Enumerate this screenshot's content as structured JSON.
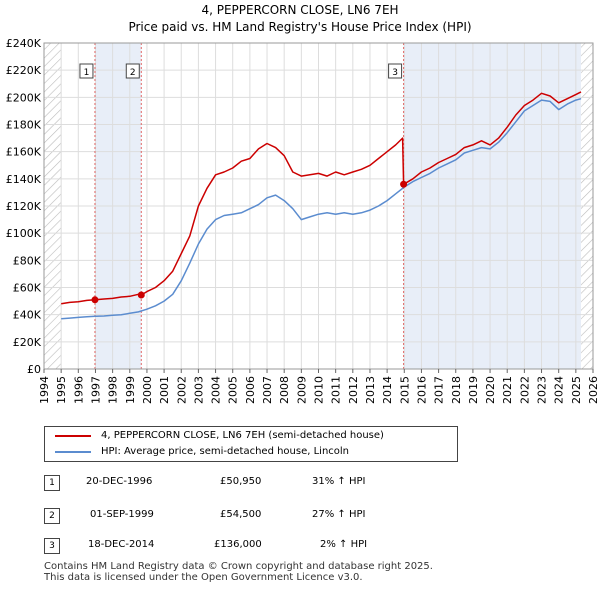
{
  "chart_data": {
    "type": "line",
    "title": "4, PEPPERCORN CLOSE, LN6 7EH",
    "subtitle": "Price paid vs. HM Land Registry's House Price Index (HPI)",
    "xlabel": "",
    "ylabel": "",
    "xlim": [
      1994.0,
      2026.0
    ],
    "ylim": [
      0,
      240000
    ],
    "x_ticks": [
      "1994",
      "1995",
      "1996",
      "1997",
      "1998",
      "1999",
      "2000",
      "2001",
      "2002",
      "2003",
      "2004",
      "2005",
      "2006",
      "2007",
      "2008",
      "2009",
      "2010",
      "2011",
      "2012",
      "2013",
      "2014",
      "2015",
      "2016",
      "2017",
      "2018",
      "2019",
      "2020",
      "2021",
      "2022",
      "2023",
      "2024",
      "2025",
      "2026"
    ],
    "y_ticks": [
      "£0",
      "£20K",
      "£40K",
      "£60K",
      "£80K",
      "£100K",
      "£120K",
      "£140K",
      "£160K",
      "£180K",
      "£200K",
      "£220K",
      "£240K"
    ],
    "grid": true,
    "series": [
      {
        "name": "4, PEPPERCORN CLOSE, LN6 7EH (semi-detached house)",
        "color": "#cc0000",
        "x": [
          1995.0,
          1995.5,
          1996.0,
          1996.5,
          1996.97,
          1997.5,
          1998.0,
          1998.5,
          1999.0,
          1999.5,
          1999.67,
          2000.0,
          2000.5,
          2001.0,
          2001.5,
          2002.0,
          2002.5,
          2003.0,
          2003.5,
          2004.0,
          2004.5,
          2005.0,
          2005.5,
          2006.0,
          2006.5,
          2007.0,
          2007.5,
          2008.0,
          2008.5,
          2009.0,
          2009.5,
          2010.0,
          2010.5,
          2011.0,
          2011.5,
          2012.0,
          2012.5,
          2013.0,
          2013.5,
          2014.0,
          2014.5,
          2014.9,
          2014.96,
          2015.5,
          2016.0,
          2016.5,
          2017.0,
          2017.5,
          2018.0,
          2018.5,
          2019.0,
          2019.5,
          2020.0,
          2020.5,
          2021.0,
          2021.5,
          2022.0,
          2022.5,
          2023.0,
          2023.5,
          2024.0,
          2024.5,
          2025.0,
          2025.3
        ],
        "values": [
          48000,
          49000,
          49500,
          50500,
          50950,
          51500,
          52000,
          53000,
          53500,
          55000,
          54500,
          57000,
          60000,
          65000,
          72000,
          85000,
          98000,
          120000,
          133000,
          143000,
          145000,
          148000,
          153000,
          155000,
          162000,
          166000,
          163000,
          157000,
          145000,
          142000,
          143000,
          144000,
          142000,
          145000,
          143000,
          145000,
          147000,
          150000,
          155000,
          160000,
          165000,
          170000,
          136000,
          140000,
          145000,
          148000,
          152000,
          155000,
          158000,
          163000,
          165000,
          168000,
          165000,
          170000,
          178000,
          187000,
          194000,
          198000,
          203000,
          201000,
          196000,
          199000,
          202000,
          204000
        ]
      },
      {
        "name": "HPI: Average price, semi-detached house, Lincoln",
        "color": "#5b8ccf",
        "x": [
          1995.0,
          1995.5,
          1996.0,
          1996.5,
          1997.0,
          1997.5,
          1998.0,
          1998.5,
          1999.0,
          1999.5,
          2000.0,
          2000.5,
          2001.0,
          2001.5,
          2002.0,
          2002.5,
          2003.0,
          2003.5,
          2004.0,
          2004.5,
          2005.0,
          2005.5,
          2006.0,
          2006.5,
          2007.0,
          2007.5,
          2008.0,
          2008.5,
          2009.0,
          2009.5,
          2010.0,
          2010.5,
          2011.0,
          2011.5,
          2012.0,
          2012.5,
          2013.0,
          2013.5,
          2014.0,
          2014.5,
          2015.0,
          2015.5,
          2016.0,
          2016.5,
          2017.0,
          2017.5,
          2018.0,
          2018.5,
          2019.0,
          2019.5,
          2020.0,
          2020.5,
          2021.0,
          2021.5,
          2022.0,
          2022.5,
          2023.0,
          2023.5,
          2024.0,
          2024.5,
          2025.0,
          2025.3
        ],
        "values": [
          37000,
          37500,
          38000,
          38500,
          38800,
          39000,
          39500,
          40000,
          41000,
          42000,
          44000,
          46500,
          50000,
          55000,
          65000,
          78000,
          92000,
          103000,
          110000,
          113000,
          114000,
          115000,
          118000,
          121000,
          126000,
          128000,
          124000,
          118000,
          110000,
          112000,
          114000,
          115000,
          114000,
          115000,
          114000,
          115000,
          117000,
          120000,
          124000,
          129000,
          134000,
          138000,
          141000,
          144000,
          148000,
          151000,
          154000,
          159000,
          161000,
          163000,
          162000,
          167000,
          174000,
          182000,
          190000,
          194000,
          198000,
          197000,
          191000,
          195000,
          198000,
          199000
        ]
      }
    ],
    "markers": [
      {
        "label": "1",
        "x": 1996.97,
        "value": 50950
      },
      {
        "label": "2",
        "x": 1999.67,
        "value": 54500
      },
      {
        "label": "3",
        "x": 2014.96,
        "value": 136000
      }
    ],
    "shaded_regions": [
      [
        1996.97,
        1999.67
      ],
      [
        2014.96,
        2025.3
      ]
    ],
    "hatched_regions": [
      [
        1994.0,
        1995.0
      ],
      [
        2025.3,
        2026.0
      ]
    ]
  },
  "legend": {
    "property": "4, PEPPERCORN CLOSE, LN6 7EH (semi-detached house)",
    "hpi": "HPI: Average price, semi-detached house, Lincoln"
  },
  "sales": [
    {
      "num": "1",
      "date": "20-DEC-1996",
      "price": "£50,950",
      "hpi": "31% ↑ HPI"
    },
    {
      "num": "2",
      "date": "01-SEP-1999",
      "price": "£54,500",
      "hpi": "27% ↑ HPI"
    },
    {
      "num": "3",
      "date": "18-DEC-2014",
      "price": "£136,000",
      "hpi": "2% ↑ HPI"
    }
  ],
  "footer": {
    "line1": "Contains HM Land Registry data © Crown copyright and database right 2025.",
    "line2": "This data is licensed under the Open Government Licence v3.0."
  }
}
